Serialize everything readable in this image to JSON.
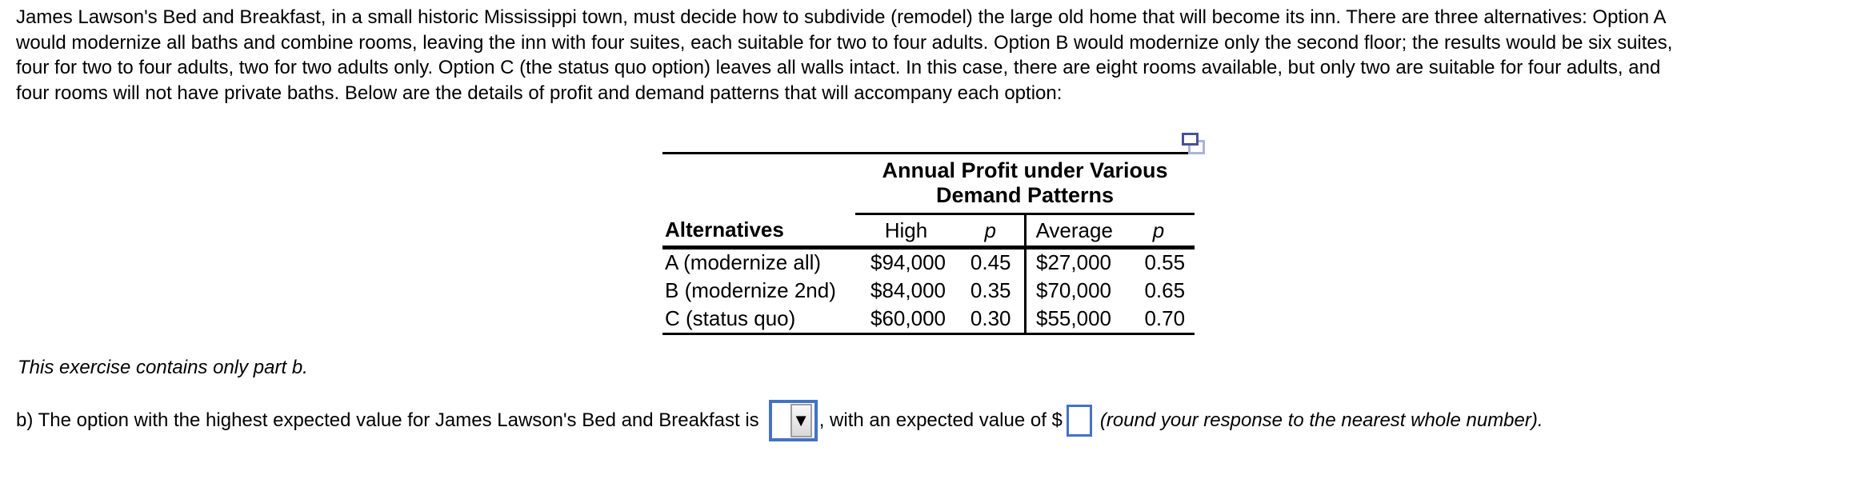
{
  "problem": {
    "lines": [
      "James Lawson's Bed and Breakfast, in a small historic Mississippi town, must decide how to subdivide (remodel) the large old home that will become its inn. There are three alternatives: Option A",
      "would modernize all baths and combine rooms, leaving the inn with four suites, each suitable for two to four adults. Option B would modernize only the second floor; the results would be six suites,",
      "four for two to four adults, two for two adults only. Option C (the status quo option) leaves all walls intact. In this case, there are eight rooms available, but only two are suitable for four adults, and",
      "four rooms will not have private baths. Below are the details of profit and demand patterns that will accompany each option:"
    ]
  },
  "table": {
    "title_line1": "Annual Profit under Various",
    "title_line2": "Demand Patterns",
    "headers": {
      "alternatives": "Alternatives",
      "high": "High",
      "p_high": "p",
      "average": "Average",
      "p_average": "p"
    },
    "rows": [
      {
        "alternative": "A (modernize all)",
        "high": "$94,000",
        "p_high": "0.45",
        "average": "$27,000",
        "p_average": "0.55"
      },
      {
        "alternative": "B (modernize 2nd)",
        "high": "$84,000",
        "p_high": "0.35",
        "average": "$70,000",
        "p_average": "0.65"
      },
      {
        "alternative": "C (status quo)",
        "high": "$60,000",
        "p_high": "0.30",
        "average": "$55,000",
        "p_average": "0.70"
      }
    ]
  },
  "note": "This exercise contains only part b.",
  "question": {
    "text_before_dropdown": "b) The option with the highest expected value for James Lawson's Bed and Breakfast is",
    "dropdown_value": "",
    "dropdown_arrow": "▼",
    "text_after_dropdown": ", with an expected value of $",
    "input_value": "",
    "text_after_input": "(round your response to the nearest whole number)."
  },
  "colors": {
    "accent_blue": "#4472c4",
    "icon_dark": "#4b5192",
    "icon_light": "#aab3d9",
    "text": "#000000",
    "background": "#ffffff"
  }
}
